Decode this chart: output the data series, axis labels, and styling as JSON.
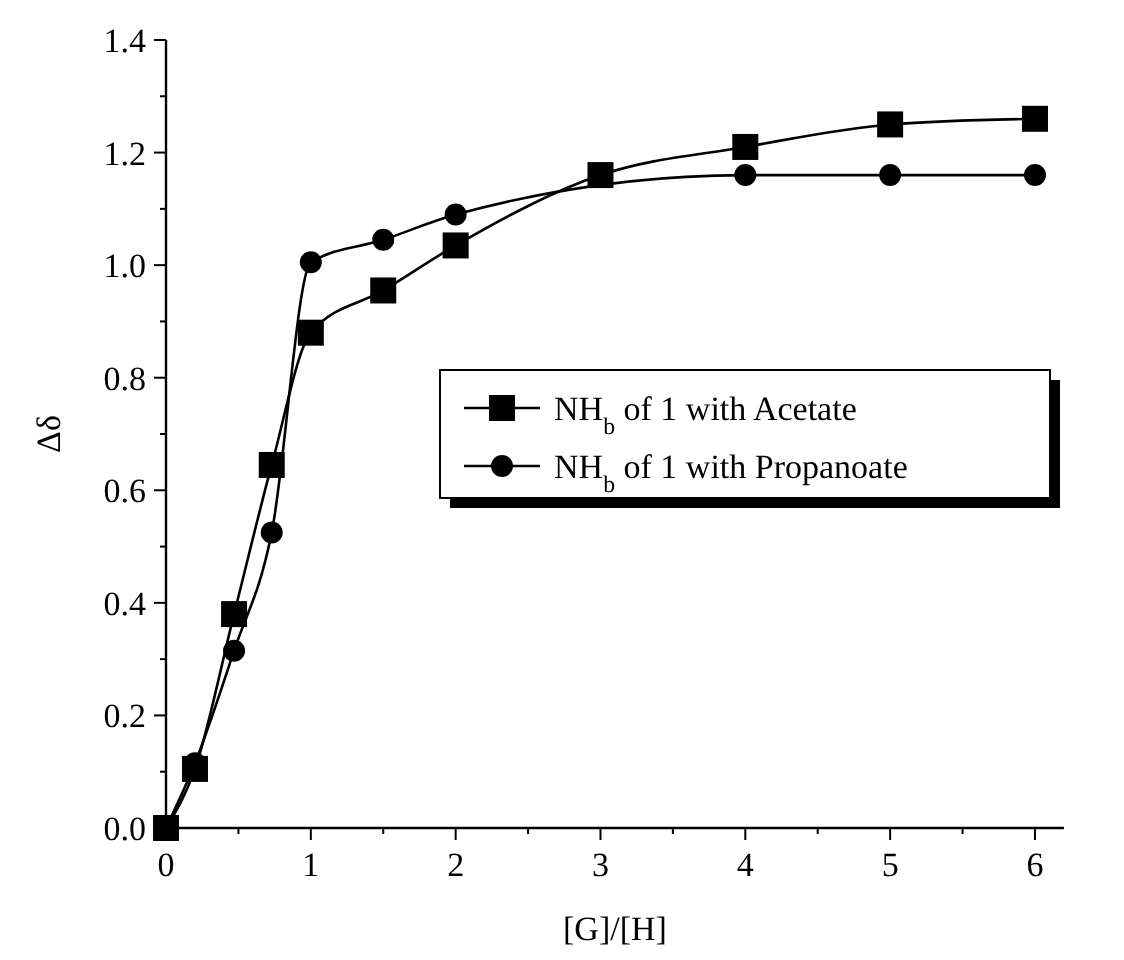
{
  "chart_data": {
    "type": "line",
    "xlabel": "[G]/[H]",
    "ylabel": "Δδ",
    "xlim": [
      0,
      6.2
    ],
    "ylim": [
      0,
      1.4
    ],
    "xticks": [
      0,
      {
        "value": 0.5,
        "label": null
      },
      1,
      {
        "value": 1.5,
        "label": null
      },
      2,
      {
        "value": 2.5,
        "label": null
      },
      3,
      {
        "value": 3.5,
        "label": null
      },
      4,
      {
        "value": 4.5,
        "label": null
      },
      5,
      {
        "value": 5.5,
        "label": null
      },
      6
    ],
    "yticks": [
      {
        "value": 0,
        "label": "0.0"
      },
      {
        "value": 0.1,
        "label": null
      },
      {
        "value": 0.2,
        "label": "0.2"
      },
      {
        "value": 0.3,
        "label": null
      },
      {
        "value": 0.4,
        "label": "0.4"
      },
      {
        "value": 0.5,
        "label": null
      },
      {
        "value": 0.6,
        "label": "0.6"
      },
      {
        "value": 0.7,
        "label": null
      },
      {
        "value": 0.8,
        "label": "0.8"
      },
      {
        "value": 0.9,
        "label": null
      },
      {
        "value": 1.0,
        "label": "1.0"
      },
      {
        "value": 1.1,
        "label": null
      },
      {
        "value": 1.2,
        "label": "1.2"
      },
      {
        "value": 1.3,
        "label": null
      },
      {
        "value": 1.4,
        "label": "1.4"
      }
    ],
    "legend": "right",
    "grid": false,
    "line_style": "solid",
    "series": [
      {
        "name": "NH$_{b}$ of 1 with Acetate",
        "color": "#000000",
        "marker": "square",
        "x": [
          0,
          0.2,
          0.47,
          0.73,
          1,
          1.5,
          2,
          3,
          4,
          5,
          6
        ],
        "values": [
          0,
          0.105,
          0.38,
          0.645,
          0.88,
          0.955,
          1.035,
          1.16,
          1.21,
          1.25,
          1.26
        ]
      },
      {
        "name": "NH$_{b}$ of 1 with Propanoate",
        "color": "#000000",
        "marker": "circle",
        "x": [
          0,
          0.2,
          0.47,
          0.73,
          1,
          1.5,
          2,
          4,
          5,
          6
        ],
        "values": [
          0,
          0.115,
          0.315,
          0.525,
          1.005,
          1.045,
          1.09,
          1.16,
          1.16,
          1.16
        ]
      }
    ]
  }
}
